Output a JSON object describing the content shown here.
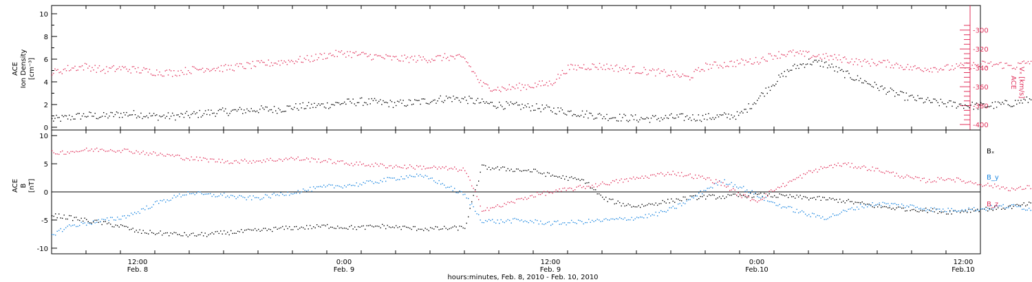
{
  "chart_data": [
    {
      "type": "scatter",
      "panel": "top",
      "ylabel_left_lines": [
        "ACE",
        "Ion Density",
        "[cm⁻³]"
      ],
      "ylabel_right_lines": [
        "ACE",
        "Vₓ [km/s]"
      ],
      "ylim_left": [
        0,
        10
      ],
      "yticks_left": [
        "0",
        "2",
        "4",
        "6",
        "8",
        "10"
      ],
      "ylim_right": [
        -400,
        -290
      ],
      "yticks_right": [
        "-400",
        "-380",
        "-360",
        "-340",
        "-320",
        "-300"
      ],
      "colors": {
        "density": "#000000",
        "vx": "#e0305a"
      },
      "series": [
        {
          "axis": "left",
          "color": "#000000",
          "values_by_hour": [
            0.7,
            0.9,
            1.1,
            1.0,
            1.2,
            1.2,
            1.0,
            1.0,
            1.1,
            1.3,
            1.4,
            1.5,
            1.6,
            1.6,
            1.8,
            1.9,
            2.0,
            2.2,
            2.3,
            2.2,
            2.1,
            2.2,
            2.4,
            2.6,
            2.5,
            2.2,
            2.0,
            1.9,
            1.8,
            1.6,
            1.4,
            1.2,
            1.0,
            0.9,
            0.8,
            0.8,
            0.9,
            0.9,
            0.9,
            1.0,
            1.1,
            2.5,
            4.0,
            5.2,
            5.8,
            5.6,
            4.8,
            4.2,
            3.6,
            3.0,
            2.6,
            2.3,
            2.1,
            2.0,
            1.9,
            2.0,
            2.2,
            2.5,
            2.3,
            1.8,
            1.5,
            1.7,
            2.0,
            2.1,
            1.8,
            1.6,
            2.0,
            2.3,
            2.4,
            2.3,
            2.5,
            2.6,
            2.8,
            2.8,
            2.7,
            2.6,
            2.6,
            2.8,
            2.9,
            3.0,
            3.1,
            3.1,
            3.2,
            3.3,
            3.2,
            3.3,
            3.5,
            3.6,
            3.7,
            3.9,
            4.3,
            4.6,
            4.8,
            4.6,
            4.1,
            3.8,
            3.6,
            4.0
          ]
        },
        {
          "axis": "right",
          "color": "#e0305a",
          "values_by_hour": [
            -345,
            -340,
            -338,
            -342,
            -340,
            -342,
            -344,
            -345,
            -342,
            -340,
            -340,
            -338,
            -336,
            -334,
            -332,
            -330,
            -326,
            -324,
            -326,
            -328,
            -330,
            -330,
            -330,
            -328,
            -330,
            -358,
            -362,
            -360,
            -358,
            -356,
            -340,
            -338,
            -338,
            -340,
            -342,
            -344,
            -346,
            -350,
            -338,
            -336,
            -334,
            -332,
            -326,
            -324,
            -326,
            -328,
            -330,
            -334,
            -334,
            -336,
            -340,
            -340,
            -340,
            -338,
            -336,
            -336,
            -338,
            -332,
            -362,
            -362,
            -358,
            -305,
            -310,
            -305,
            -308,
            -306,
            -306,
            -305,
            -308,
            -310,
            -306,
            -300,
            -298,
            -302,
            -306,
            -308,
            -310,
            -306,
            -308,
            -304,
            -306,
            -302,
            -308,
            -312,
            -316,
            -316,
            -320,
            -324,
            -326,
            -330,
            -334,
            -330,
            -326,
            -328,
            -326,
            -324,
            -326,
            -324
          ]
        }
      ]
    },
    {
      "type": "scatter",
      "panel": "bottom",
      "ylabel_left_lines": [
        "ACE",
        "B",
        "[nT]"
      ],
      "ylim": [
        -11,
        11
      ],
      "yticks": [
        "-10",
        "-5",
        "0",
        "5",
        "10"
      ],
      "legend_placement": "right",
      "series": [
        {
          "name": "Bₓ",
          "color": "#000000",
          "values_by_hour": [
            -4.0,
            -4.5,
            -5.0,
            -5.5,
            -6.0,
            -7.0,
            -7.2,
            -7.4,
            -7.6,
            -7.5,
            -7.2,
            -7.0,
            -6.8,
            -6.5,
            -6.3,
            -6.2,
            -6.0,
            -6.2,
            -6.3,
            -6.0,
            -6.2,
            -6.4,
            -6.5,
            -6.4,
            -6.3,
            4.5,
            4.2,
            4.0,
            3.8,
            3.0,
            2.5,
            2.0,
            -1.0,
            -2.0,
            -2.5,
            -2.0,
            -1.5,
            -1.0,
            -0.8,
            -0.8,
            -0.6,
            -0.5,
            -0.6,
            -0.8,
            -1.0,
            -1.2,
            -1.5,
            -2.0,
            -2.5,
            -2.8,
            -3.0,
            -3.2,
            -3.5,
            -3.3,
            -3.0,
            -2.8,
            -2.5,
            -2.0,
            -0.5,
            1.5,
            2.5,
            3.5,
            4.0,
            4.2,
            3.8,
            3.5,
            3.2,
            3.8,
            4.0,
            3.5,
            3.0,
            2.5,
            3.2,
            3.6,
            3.0,
            2.5,
            2.0,
            2.8,
            3.5,
            3.8,
            3.4,
            3.0,
            2.5,
            2.0,
            1.5,
            1.0,
            0.5,
            0.2,
            0.6,
            1.0,
            1.4,
            1.8,
            2.0,
            2.2,
            2.4,
            2.2,
            2.0,
            2.0
          ]
        },
        {
          "name": "B_y",
          "color": "#1a86e0",
          "values_by_hour": [
            -7.5,
            -6.0,
            -5.5,
            -5.0,
            -4.5,
            -3.5,
            -2.0,
            -1.0,
            0.0,
            -0.5,
            -0.5,
            -1.0,
            -1.0,
            -0.5,
            0.0,
            0.5,
            1.0,
            1.2,
            1.5,
            2.0,
            2.5,
            3.0,
            2.5,
            1.0,
            -0.5,
            -5.0,
            -5.2,
            -5.0,
            -5.2,
            -5.5,
            -5.4,
            -5.2,
            -5.0,
            -4.8,
            -4.5,
            -4.0,
            -3.0,
            -1.5,
            0.5,
            2.0,
            1.0,
            -0.5,
            -2.0,
            -3.0,
            -4.0,
            -4.5,
            -3.5,
            -2.5,
            -2.0,
            -2.2,
            -2.5,
            -3.0,
            -3.2,
            -3.0,
            -3.0,
            -2.5,
            -2.5,
            -3.0,
            -3.5,
            -0.5,
            2.0,
            0.5,
            -1.0,
            -2.5,
            -3.0,
            -3.2,
            -3.5,
            -3.8,
            -4.0,
            -4.0,
            -4.2,
            -4.0,
            -3.8,
            -4.2,
            -4.5,
            -4.8,
            -4.6,
            -4.5,
            -3.0,
            -2.0,
            -2.5,
            -3.0,
            -4.0,
            -5.0,
            -5.5,
            -6.0,
            -6.5,
            -7.0,
            -7.5,
            -7.0,
            -6.5,
            -6.0,
            -5.5,
            -5.0,
            -4.0,
            -3.0,
            -2.0,
            -1.0
          ]
        },
        {
          "name": "B_z",
          "color": "#e0305a",
          "values_by_hour": [
            7.0,
            7.2,
            7.5,
            7.6,
            7.5,
            7.2,
            6.8,
            6.5,
            6.0,
            5.8,
            5.5,
            5.5,
            5.6,
            5.8,
            6.0,
            5.8,
            5.6,
            5.2,
            5.0,
            4.8,
            4.6,
            4.5,
            4.4,
            4.2,
            4.0,
            -3.0,
            -2.5,
            -1.5,
            -0.5,
            0.0,
            0.5,
            1.0,
            1.5,
            2.0,
            2.5,
            3.0,
            3.5,
            3.0,
            2.5,
            1.5,
            -0.5,
            -1.5,
            0.5,
            2.0,
            3.5,
            4.5,
            5.0,
            4.5,
            4.0,
            3.2,
            2.5,
            2.0,
            2.5,
            2.0,
            1.5,
            1.0,
            0.5,
            1.0,
            1.5,
            0.0,
            -1.0,
            -2.0,
            -2.5,
            -3.0,
            -3.5,
            -3.8,
            -4.0,
            -3.5,
            -3.0,
            -2.8,
            -2.5,
            -2.0,
            -2.5,
            -3.0,
            -3.5,
            -3.8,
            -4.0,
            -3.5,
            -3.0,
            -2.5,
            -2.0,
            -1.5,
            -1.8,
            -2.2,
            -2.5,
            -2.8,
            -2.5,
            -2.0,
            -1.5,
            -2.5,
            -3.5,
            -4.5,
            -5.0,
            -5.5,
            -5.8,
            -5.5,
            -5.0,
            -4.5
          ]
        }
      ],
      "legend": [
        "Bₓ",
        "B_y",
        "B_z"
      ]
    }
  ],
  "x_axis": {
    "label": "hours:minutes, Feb. 8, 2010 - Feb. 10, 2010",
    "data_start": "2010-02-08T07:00",
    "data_end": "2010-02-10T10:00",
    "range": [
      "2010-02-08T07:00",
      "2010-02-10T13:00"
    ],
    "major_ticks": [
      {
        "time": "12:00",
        "date": "Feb. 8"
      },
      {
        "time": "0:00",
        "date": "Feb. 9"
      },
      {
        "time": "12:00",
        "date": "Feb. 9"
      },
      {
        "time": "0:00",
        "date": "Feb.10"
      },
      {
        "time": "12:00",
        "date": "Feb.10"
      }
    ]
  }
}
